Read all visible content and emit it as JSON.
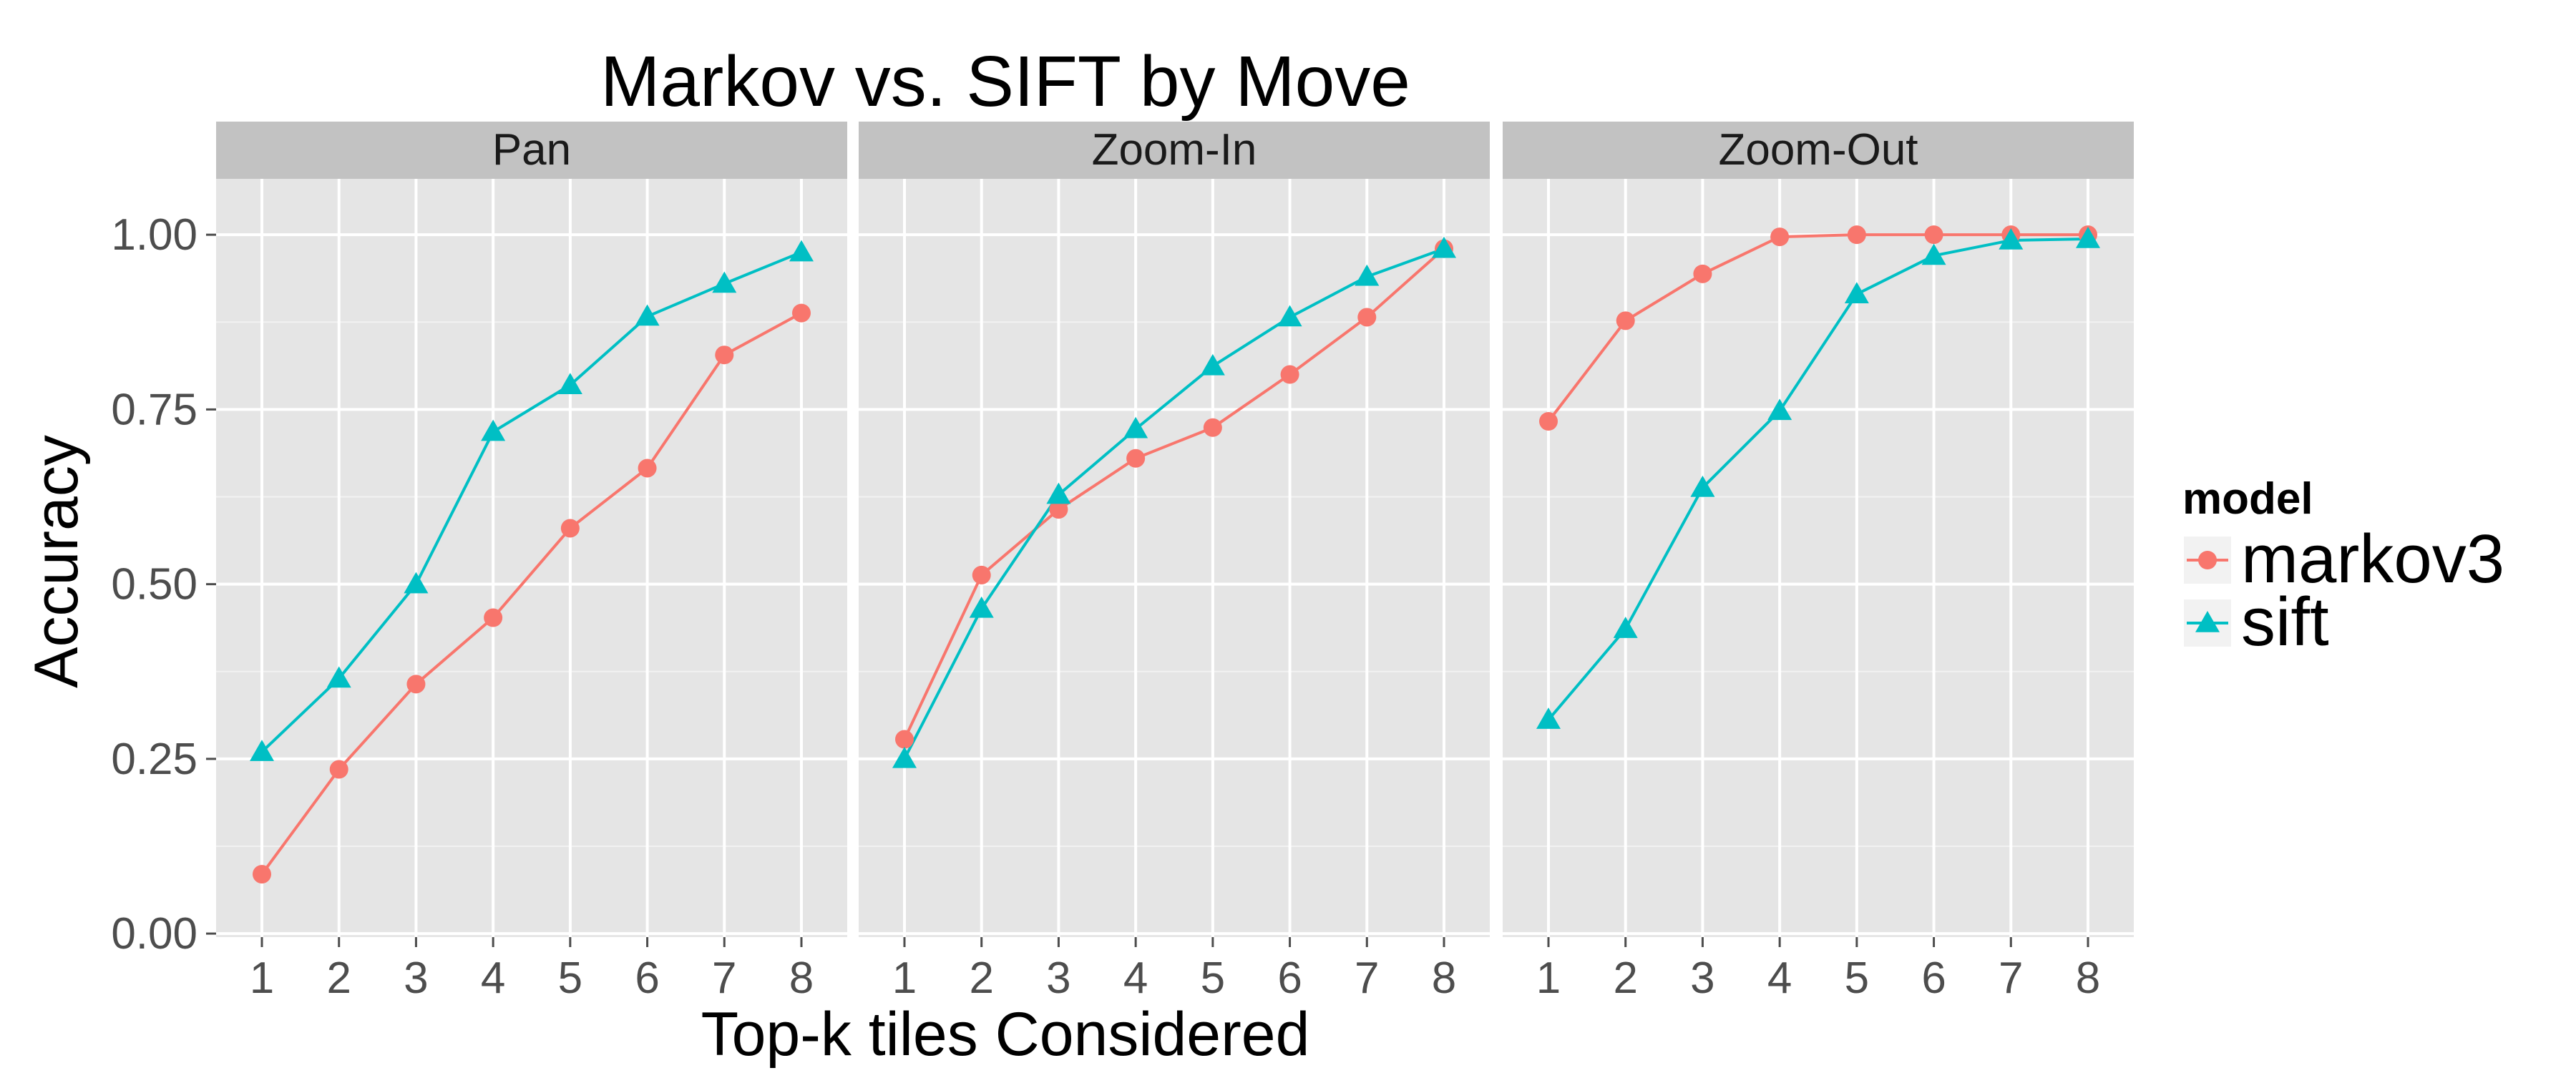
{
  "chart_data": {
    "type": "line",
    "title": "Markov vs. SIFT by Move",
    "xlabel": "Top-k tiles Considered",
    "ylabel": "Accuracy",
    "x": [
      1,
      2,
      3,
      4,
      5,
      6,
      7,
      8
    ],
    "x_ticks": [
      "1",
      "2",
      "3",
      "4",
      "5",
      "6",
      "7",
      "8"
    ],
    "ylim": [
      0,
      1
    ],
    "y_ticks": [
      "0.00",
      "0.25",
      "0.50",
      "0.75",
      "1.00"
    ],
    "grid": true,
    "legend": {
      "title": "model",
      "position": "right",
      "entries": [
        "markov3",
        "sift"
      ]
    },
    "colors": {
      "markov3": "#F8766D",
      "sift": "#00BFC4"
    },
    "markers": {
      "markov3": "circle",
      "sift": "triangle"
    },
    "facets": [
      {
        "label": "Pan",
        "series": [
          {
            "name": "markov3",
            "values": [
              0.085,
              0.235,
              0.357,
              0.452,
              0.58,
              0.666,
              0.828,
              0.888
            ]
          },
          {
            "name": "sift",
            "values": [
              0.26,
              0.365,
              0.5,
              0.718,
              0.785,
              0.883,
              0.93,
              0.975
            ]
          }
        ]
      },
      {
        "label": "Zoom-In",
        "series": [
          {
            "name": "markov3",
            "values": [
              0.278,
              0.513,
              0.607,
              0.68,
              0.724,
              0.8,
              0.882,
              0.98
            ]
          },
          {
            "name": "sift",
            "values": [
              0.25,
              0.465,
              0.628,
              0.722,
              0.812,
              0.882,
              0.94,
              0.98
            ]
          }
        ]
      },
      {
        "label": "Zoom-Out",
        "series": [
          {
            "name": "markov3",
            "values": [
              0.733,
              0.877,
              0.944,
              0.997,
              1.0,
              1.0,
              1.0,
              1.0
            ]
          },
          {
            "name": "sift",
            "values": [
              0.306,
              0.436,
              0.638,
              0.748,
              0.915,
              0.97,
              0.992,
              0.994
            ]
          }
        ]
      }
    ]
  }
}
